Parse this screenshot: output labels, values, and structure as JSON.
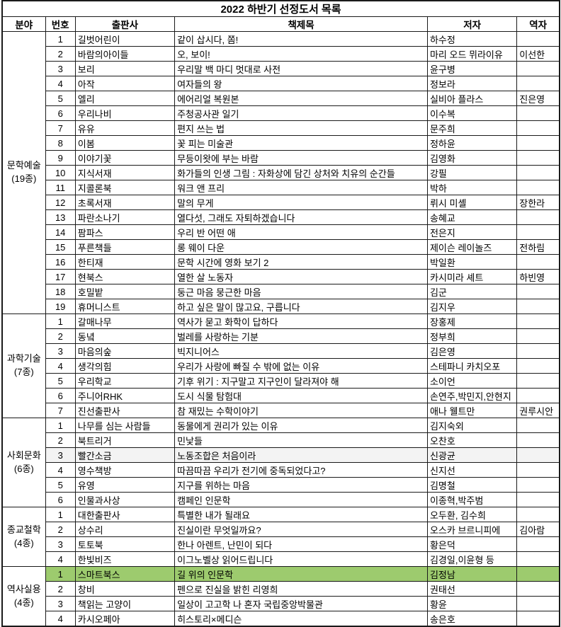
{
  "title": "2022 하반기 선정도서 목록",
  "columns": [
    "분야",
    "번호",
    "출판사",
    "책제목",
    "저자",
    "역자"
  ],
  "colors": {
    "highlight_green": "#9dcb6e",
    "highlight_gray": "#f3f3f3",
    "border": "#1a1a1a"
  },
  "sections": [
    {
      "category": "문학예술",
      "count_label": "(19종)",
      "rows": [
        {
          "no": "1",
          "publisher": "길벗어린이",
          "title": "같이 삽시다, 쫌!",
          "author": "하수정",
          "translator": ""
        },
        {
          "no": "2",
          "publisher": "바람의아이들",
          "title": "오, 보이!",
          "author": "마리 오드 뮈라이유",
          "translator": "이선한"
        },
        {
          "no": "3",
          "publisher": "보리",
          "title": "우리말 백 마디 멋대로 사전",
          "author": "윤구병",
          "translator": ""
        },
        {
          "no": "4",
          "publisher": "아작",
          "title": "여자들의 왕",
          "author": "정보라",
          "translator": ""
        },
        {
          "no": "5",
          "publisher": "엘리",
          "title": "에어리얼 복원본",
          "author": "실비아 플라스",
          "translator": "진은영"
        },
        {
          "no": "6",
          "publisher": "우리나비",
          "title": "주청공사관 일기",
          "author": "이수복",
          "translator": ""
        },
        {
          "no": "7",
          "publisher": "유유",
          "title": "편지 쓰는 법",
          "author": "문주희",
          "translator": ""
        },
        {
          "no": "8",
          "publisher": "이봄",
          "title": "꽃 피는 미술관",
          "author": "정하윤",
          "translator": ""
        },
        {
          "no": "9",
          "publisher": "이야기꽃",
          "title": "무등이왓에 부는 바람",
          "author": "김영화",
          "translator": ""
        },
        {
          "no": "10",
          "publisher": "지식서재",
          "title": "화가들의 인생 그림 : 자화상에 담긴 상처와 치유의 순간들",
          "author": "강필",
          "translator": ""
        },
        {
          "no": "11",
          "publisher": "지콜론북",
          "title": "워크 앤 프리",
          "author": "박하",
          "translator": ""
        },
        {
          "no": "12",
          "publisher": "초록서재",
          "title": "말의 무게",
          "author": "뤼시 미셸",
          "translator": "장한라"
        },
        {
          "no": "13",
          "publisher": "파란소나기",
          "title": "열다섯, 그래도 자퇴하겠습니다",
          "author": "송혜교",
          "translator": ""
        },
        {
          "no": "14",
          "publisher": "팜파스",
          "title": "우리 반 어떤 애",
          "author": "전은지",
          "translator": ""
        },
        {
          "no": "15",
          "publisher": "푸른책들",
          "title": "롱 웨이 다운",
          "author": "제이슨 레이놀즈",
          "translator": "전하림"
        },
        {
          "no": "16",
          "publisher": "한티재",
          "title": "문학 시간에 영화 보기 2",
          "author": "박일환",
          "translator": ""
        },
        {
          "no": "17",
          "publisher": "현북스",
          "title": "열한 살 노동자",
          "author": "카시미라 셰트",
          "translator": "하빈영"
        },
        {
          "no": "18",
          "publisher": "호밀밭",
          "title": "둥근 마음 뭉근한 마음",
          "author": "김군",
          "translator": ""
        },
        {
          "no": "19",
          "publisher": "휴머니스트",
          "title": "하고 싶은 말이 많고요, 구릅니다",
          "author": "김지우",
          "translator": ""
        }
      ]
    },
    {
      "category": "과학기술",
      "count_label": "(7종)",
      "rows": [
        {
          "no": "1",
          "publisher": "갈매나무",
          "title": "역사가 묻고 화학이 답하다",
          "author": "장홍제",
          "translator": ""
        },
        {
          "no": "2",
          "publisher": "동녘",
          "title": "벌레를 사랑하는 기분",
          "author": "정부희",
          "translator": ""
        },
        {
          "no": "3",
          "publisher": "마음의숲",
          "title": "빅지니어스",
          "author": "김은영",
          "translator": ""
        },
        {
          "no": "4",
          "publisher": "생각의힘",
          "title": "우리가 사랑에 빠질 수 밖에 없는 이유",
          "author": "스테파니 카치오포",
          "translator": ""
        },
        {
          "no": "5",
          "publisher": "우리학교",
          "title": "기후 위기 : 지구말고 지구인이 달라져야 해",
          "author": "소이언",
          "translator": ""
        },
        {
          "no": "6",
          "publisher": "주니어RHK",
          "title": "도시 식물 탐험대",
          "author": "손연주,박민지,안현지",
          "translator": ""
        },
        {
          "no": "7",
          "publisher": "진선출판사",
          "title": "참 재밌는 수학이야기",
          "author": "애나 웰트만",
          "translator": "권루시안"
        }
      ]
    },
    {
      "category": "사회문화",
      "count_label": "(6종)",
      "rows": [
        {
          "no": "1",
          "publisher": "나무를 심는 사람들",
          "title": "동물에게 권리가 있는 이유",
          "author": "김지숙외",
          "translator": ""
        },
        {
          "no": "2",
          "publisher": "북트리거",
          "title": "민낯들",
          "author": "오찬호",
          "translator": ""
        },
        {
          "no": "3",
          "publisher": "빨간소금",
          "title": "노동조합은 처음이라",
          "author": "신광균",
          "translator": "",
          "highlight": "gray"
        },
        {
          "no": "4",
          "publisher": "영수책방",
          "title": "따끔따끔 우리가 전기에 중독되었다고?",
          "author": "신지선",
          "translator": ""
        },
        {
          "no": "5",
          "publisher": "유영",
          "title": "지구를 위하는 마음",
          "author": "김명철",
          "translator": ""
        },
        {
          "no": "6",
          "publisher": "인물과사상",
          "title": "캠페인 인문학",
          "author": "이종혁,박주범",
          "translator": ""
        }
      ]
    },
    {
      "category": "종교철학",
      "count_label": "(4종)",
      "rows": [
        {
          "no": "1",
          "publisher": "대한출판사",
          "title": "특별한 내가 될래요",
          "author": "오두환, 김수희",
          "translator": ""
        },
        {
          "no": "2",
          "publisher": "상수리",
          "title": "진실이란 무엇일까요?",
          "author": "오스카 브르니피에",
          "translator": "김아람"
        },
        {
          "no": "3",
          "publisher": "토토북",
          "title": "한나 아렌트, 난민이 되다",
          "author": "황은덕",
          "translator": ""
        },
        {
          "no": "4",
          "publisher": "한빛비즈",
          "title": "이그노벨상 읽어드립니다",
          "author": "김경일,이윤형 등",
          "translator": ""
        }
      ]
    },
    {
      "category": "역사실용",
      "count_label": "(4종)",
      "rows": [
        {
          "no": "1",
          "publisher": "스마트북스",
          "title": "길 위의 인문학",
          "author": "김정남",
          "translator": "",
          "highlight": "green"
        },
        {
          "no": "2",
          "publisher": "창비",
          "title": "펜으로 진실을 밝힌 리영희",
          "author": "권태선",
          "translator": ""
        },
        {
          "no": "3",
          "publisher": "책읽는 고양이",
          "title": "일상이 고고학 나 혼자 국립중앙박물관",
          "author": "황윤",
          "translator": ""
        },
        {
          "no": "4",
          "publisher": "카시오페아",
          "title": "히스토리×메디슨",
          "author": "송은호",
          "translator": ""
        }
      ]
    }
  ]
}
